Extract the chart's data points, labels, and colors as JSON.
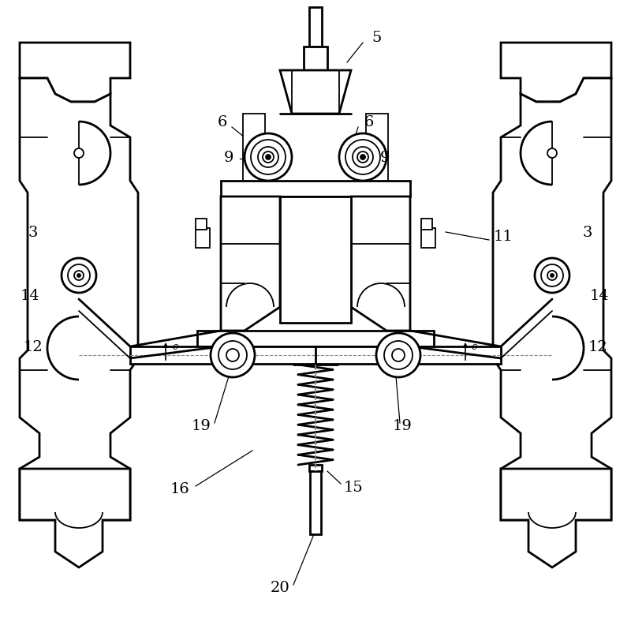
{
  "bg_color": "#ffffff",
  "line_color": "#000000",
  "fig_width": 8.0,
  "fig_height": 8.12,
  "dpi": 100
}
